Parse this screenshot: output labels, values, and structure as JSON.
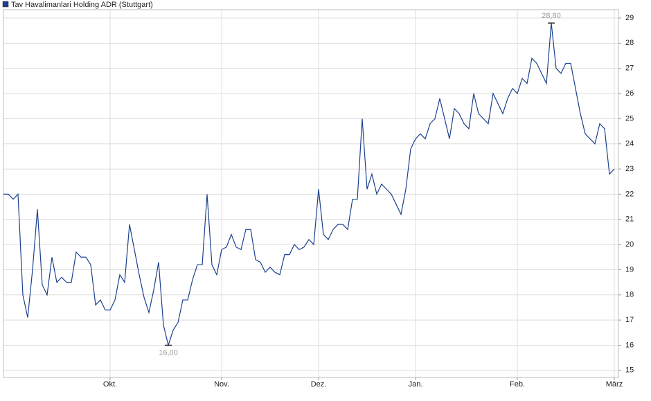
{
  "chart_data": {
    "type": "line",
    "categories": [
      null,
      null,
      null,
      null,
      null,
      null,
      null,
      null,
      null,
      null,
      null,
      null,
      null,
      null,
      null,
      null,
      null,
      null,
      null,
      null,
      null,
      null,
      "Okt.",
      null,
      null,
      null,
      null,
      null,
      null,
      null,
      null,
      null,
      null,
      null,
      null,
      null,
      null,
      null,
      null,
      null,
      null,
      null,
      null,
      null,
      null,
      "Nov.",
      null,
      null,
      null,
      null,
      null,
      null,
      null,
      null,
      null,
      null,
      null,
      null,
      null,
      null,
      null,
      null,
      null,
      null,
      null,
      "Dez.",
      null,
      null,
      null,
      null,
      null,
      null,
      null,
      null,
      null,
      null,
      null,
      null,
      null,
      null,
      null,
      null,
      null,
      null,
      null,
      "Jan.",
      null,
      null,
      null,
      null,
      null,
      null,
      null,
      null,
      null,
      null,
      null,
      null,
      null,
      null,
      null,
      null,
      null,
      null,
      null,
      null,
      "Feb.",
      null,
      null,
      null,
      null,
      null,
      null,
      null,
      null,
      null,
      null,
      null,
      null,
      null,
      null,
      null,
      null,
      null,
      null,
      null,
      "März"
    ],
    "series": [
      {
        "name": "Tav Havalimanlari Holding ADR (Stuttgart)",
        "color": "#1a3f8f",
        "values": [
          22.0,
          22.0,
          21.8,
          22.0,
          18.0,
          17.1,
          19.0,
          21.4,
          18.4,
          18.0,
          19.5,
          18.5,
          18.7,
          18.5,
          18.5,
          19.7,
          19.5,
          19.5,
          19.2,
          17.6,
          17.8,
          17.4,
          17.4,
          17.8,
          18.8,
          18.5,
          20.8,
          19.8,
          18.8,
          17.9,
          17.3,
          18.2,
          19.3,
          16.8,
          16.0,
          16.6,
          16.9,
          17.8,
          17.8,
          18.6,
          19.2,
          19.2,
          22.0,
          19.2,
          18.8,
          19.8,
          19.9,
          20.4,
          19.9,
          19.8,
          20.6,
          20.6,
          19.4,
          19.3,
          18.9,
          19.1,
          18.9,
          18.8,
          19.6,
          19.6,
          20.0,
          19.8,
          19.9,
          20.2,
          20.0,
          22.2,
          20.4,
          20.2,
          20.6,
          20.8,
          20.8,
          20.6,
          21.8,
          21.8,
          25.0,
          22.2,
          22.8,
          22.0,
          22.4,
          22.2,
          22.0,
          21.6,
          21.2,
          22.2,
          23.8,
          24.2,
          24.4,
          24.2,
          24.8,
          25.0,
          25.8,
          25.0,
          24.2,
          25.4,
          25.2,
          24.8,
          24.6,
          26.0,
          25.2,
          25.0,
          24.8,
          26.0,
          25.6,
          25.2,
          25.8,
          26.2,
          26.0,
          26.6,
          26.4,
          27.4,
          27.2,
          26.8,
          26.4,
          28.8,
          27.0,
          26.8,
          27.2,
          27.2,
          26.2,
          25.2,
          24.4,
          24.2,
          24.0,
          24.8,
          24.6,
          22.8,
          23.0
        ]
      }
    ],
    "ylim": [
      14.72,
      29.33
    ],
    "yticks": [
      15,
      16,
      17,
      18,
      19,
      20,
      21,
      22,
      23,
      24,
      25,
      26,
      27,
      28,
      29
    ],
    "grid": true,
    "legend": "top-left",
    "annotations": [
      {
        "text": "28,80",
        "value": 28.8
      },
      {
        "text": "16,00",
        "value": 16.0
      }
    ]
  }
}
